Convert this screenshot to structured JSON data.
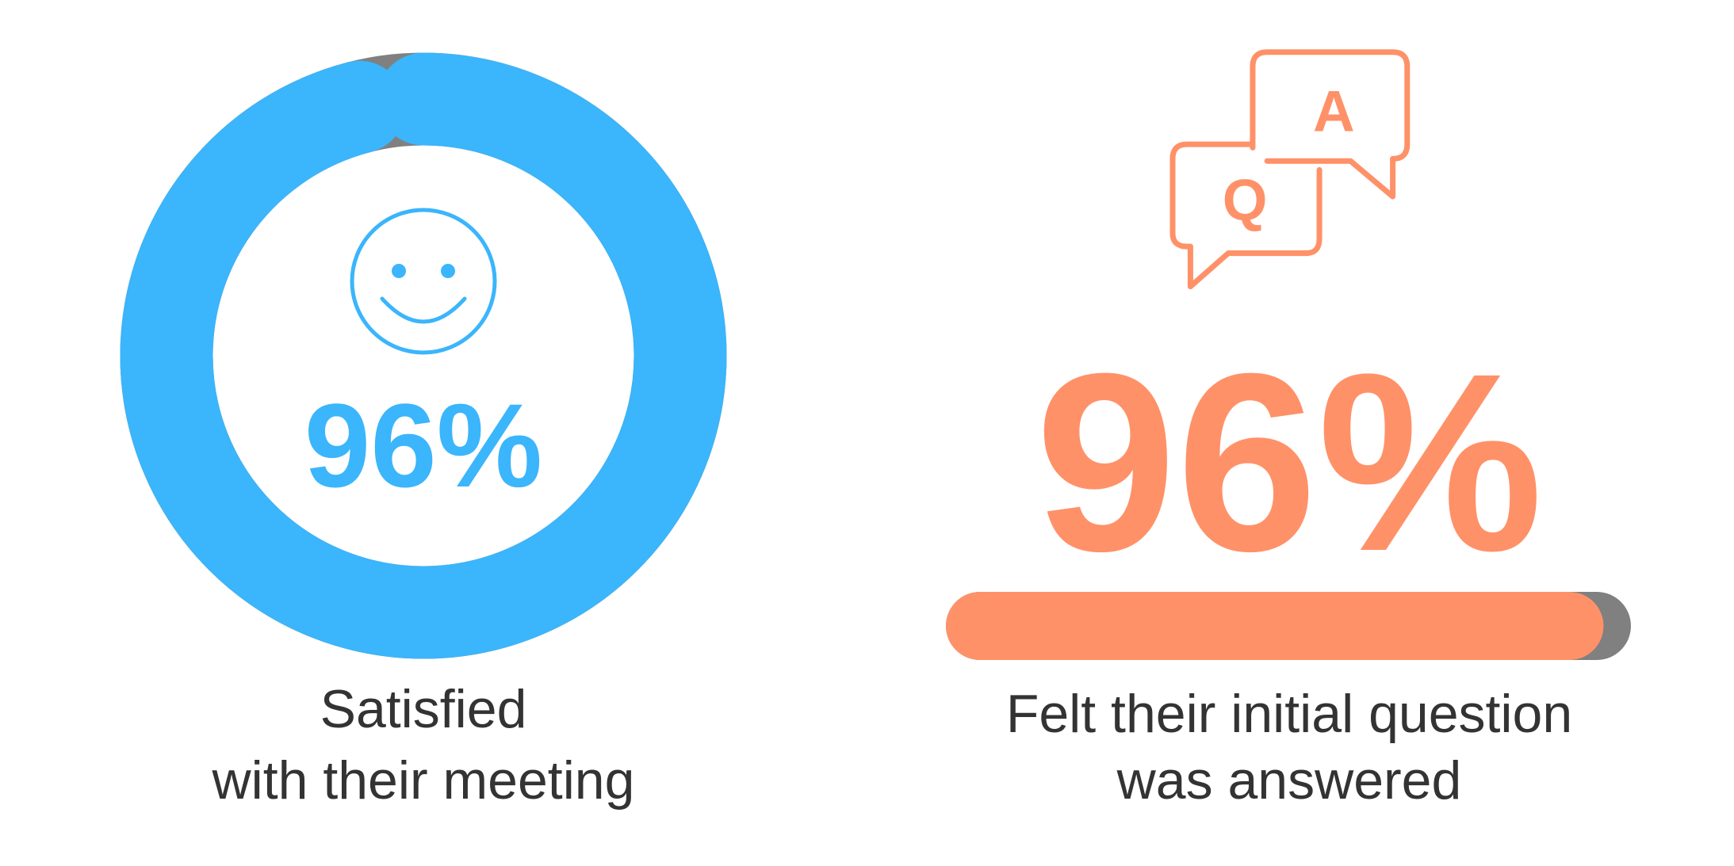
{
  "chart_data": [
    {
      "type": "donut",
      "values": [
        96
      ],
      "value_labels": [
        "96%"
      ],
      "ylim": [
        0,
        100
      ],
      "color": "#3bb5fb",
      "track_color": "#808080",
      "caption": [
        "Satisfied",
        "with their meeting"
      ]
    },
    {
      "type": "progress",
      "values": [
        96
      ],
      "value_labels": [
        "96%"
      ],
      "ylim": [
        0,
        100
      ],
      "color": "#ff9168",
      "track_color": "#808080",
      "icon_labels": [
        "Q",
        "A"
      ],
      "caption": [
        "Felt their initial question",
        "was answered"
      ]
    }
  ]
}
